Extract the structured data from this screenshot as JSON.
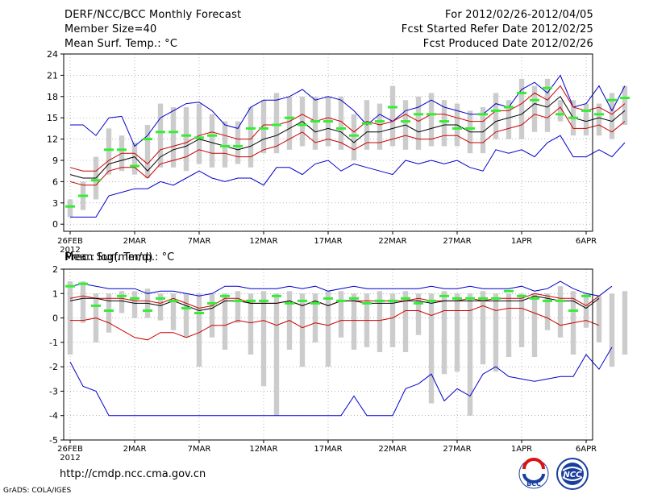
{
  "header": {
    "title": "DERF/NCC/BCC Monthly Forecast",
    "member_size": "Member Size=40",
    "var1": "Mean Surf. Temp.: °C",
    "period": "For 2012/02/26-2012/04/05",
    "refer_date": "Fcst Started Refer Date 2012/02/25",
    "produced_date": "Fcst Produced Date 2012/02/26"
  },
  "footer": {
    "url": "http://cmdp.ncc.cma.gov.cn",
    "credit": "GrADS: COLA/IGES",
    "logo1_text": "BCC",
    "logo2_text": "NCC"
  },
  "colors": {
    "max_min": "#0000cc",
    "band": "#cc0000",
    "mean": "#000000",
    "obs": "#33ee33",
    "bar": "#cccccc",
    "grid": "#888888"
  },
  "chart_data": [
    {
      "type": "line",
      "title": "Mean Surf. Temp.: °C",
      "xlabel": "",
      "ylabel": "°C",
      "ylim": [
        -1,
        24
      ],
      "yticks": [
        0,
        3,
        6,
        9,
        12,
        15,
        18,
        21,
        24
      ],
      "x_tick_labels": [
        "26FEB",
        "2MAR",
        "7MAR",
        "12MAR",
        "17MAR",
        "22MAR",
        "27MAR",
        "1APR",
        "6APR"
      ],
      "x_tick_day_index": [
        0,
        5,
        10,
        15,
        20,
        25,
        30,
        35,
        40
      ],
      "year_label": "2012",
      "grid": true,
      "series": [
        {
          "name": "max",
          "values": [
            14.0,
            14.0,
            12.5,
            15.0,
            15.2,
            11.0,
            12.5,
            15.0,
            16.0,
            17.0,
            17.2,
            16.0,
            14.0,
            13.5,
            16.5,
            17.5,
            17.5,
            18.0,
            19.0,
            17.5,
            18.0,
            17.5,
            16.0,
            14.0,
            15.5,
            14.5,
            16.0,
            16.5,
            17.5,
            16.5,
            16.0,
            15.5,
            15.5,
            17.0,
            16.5,
            19.0,
            20.0,
            18.5,
            21.0,
            16.5,
            17.0,
            19.5,
            16.0,
            19.5
          ]
        },
        {
          "name": "upper",
          "values": [
            8.0,
            7.5,
            7.5,
            9.0,
            10.0,
            10.0,
            8.5,
            10.5,
            11.0,
            11.5,
            12.5,
            13.0,
            12.5,
            12.0,
            12.0,
            14.0,
            14.0,
            14.5,
            15.5,
            14.5,
            15.0,
            14.5,
            13.0,
            14.5,
            14.0,
            14.5,
            15.5,
            14.5,
            15.5,
            15.5,
            15.0,
            14.5,
            14.5,
            16.0,
            16.0,
            17.0,
            18.5,
            17.5,
            19.5,
            16.5,
            16.0,
            16.5,
            15.5,
            17.0
          ]
        },
        {
          "name": "mean",
          "values": [
            7.0,
            6.5,
            6.5,
            8.5,
            9.0,
            9.5,
            7.5,
            9.5,
            10.5,
            11.0,
            12.0,
            11.5,
            11.0,
            10.5,
            11.0,
            12.0,
            12.5,
            13.5,
            14.5,
            13.0,
            13.5,
            13.0,
            11.5,
            13.0,
            13.0,
            13.5,
            14.0,
            13.0,
            13.5,
            14.0,
            14.0,
            13.0,
            13.0,
            14.5,
            15.0,
            15.5,
            17.0,
            16.5,
            18.0,
            15.0,
            14.5,
            15.0,
            14.5,
            16.0
          ]
        },
        {
          "name": "lower",
          "values": [
            6.0,
            5.5,
            5.5,
            7.5,
            8.0,
            8.0,
            6.5,
            8.5,
            9.0,
            9.5,
            10.5,
            10.0,
            10.0,
            9.5,
            9.5,
            10.5,
            11.0,
            12.0,
            13.0,
            11.5,
            12.0,
            11.5,
            10.5,
            11.5,
            11.5,
            12.0,
            12.5,
            12.0,
            12.0,
            12.5,
            12.5,
            11.5,
            11.5,
            13.0,
            13.5,
            14.0,
            15.5,
            15.0,
            16.5,
            13.5,
            13.5,
            14.0,
            13.0,
            14.5
          ]
        },
        {
          "name": "min",
          "values": [
            1.0,
            1.0,
            1.0,
            4.0,
            4.5,
            5.0,
            5.0,
            6.0,
            5.5,
            6.5,
            7.5,
            6.5,
            6.0,
            6.5,
            6.5,
            5.5,
            8.0,
            8.0,
            7.0,
            8.5,
            9.0,
            7.5,
            8.5,
            8.0,
            7.5,
            7.0,
            9.0,
            8.5,
            9.0,
            8.5,
            9.0,
            8.0,
            7.5,
            10.5,
            10.0,
            10.5,
            9.5,
            11.5,
            12.5,
            9.5,
            9.5,
            10.5,
            9.5,
            11.5
          ]
        }
      ],
      "obs": [
        2.5,
        4.0,
        6.2,
        10.5,
        10.5,
        8.2,
        12.0,
        13.0,
        13.0,
        12.5,
        12.2,
        12.5,
        11.0,
        11.0,
        13.5,
        13.5,
        14.0,
        15.0,
        14.0,
        14.5,
        14.5,
        13.5,
        12.5,
        14.2,
        14.5,
        16.5,
        14.5,
        15.5,
        15.5,
        14.5,
        13.5,
        13.5,
        15.5,
        16.0,
        16.5,
        18.5,
        17.5,
        19.2,
        15.5,
        15.0,
        16.0,
        15.5,
        17.5,
        17.8
      ],
      "bar_lo": [
        1.0,
        2.0,
        3.5,
        7.0,
        7.5,
        7.0,
        6.5,
        8.0,
        8.0,
        7.5,
        8.5,
        8.0,
        8.0,
        8.5,
        8.0,
        10.0,
        10.0,
        10.5,
        11.0,
        10.5,
        11.0,
        10.5,
        9.0,
        10.5,
        10.5,
        11.0,
        10.5,
        10.5,
        11.0,
        11.0,
        11.0,
        10.0,
        10.0,
        12.0,
        12.0,
        12.0,
        13.0,
        13.0,
        14.5,
        12.5,
        12.5,
        12.5,
        12.0,
        14.0
      ],
      "bar_hi": [
        3.5,
        6.0,
        9.5,
        13.5,
        12.5,
        11.5,
        14.0,
        17.0,
        16.5,
        16.5,
        17.0,
        15.5,
        14.5,
        14.5,
        16.5,
        17.5,
        18.5,
        18.0,
        18.0,
        18.0,
        18.0,
        18.0,
        15.5,
        17.5,
        17.0,
        19.5,
        17.5,
        18.0,
        18.5,
        17.5,
        17.0,
        16.0,
        16.5,
        18.5,
        17.5,
        20.5,
        19.5,
        20.5,
        17.5,
        17.5,
        17.0,
        17.0,
        18.5,
        19.5
      ]
    },
    {
      "type": "line",
      "title": "Prec.: log(mm/d)",
      "xlabel": "",
      "ylabel": "log(mm/d)",
      "ylim": [
        -5,
        2
      ],
      "yticks": [
        -5,
        -4,
        -3,
        -2,
        -1,
        0,
        1,
        2
      ],
      "x_tick_labels": [
        "26FEB",
        "2MAR",
        "7MAR",
        "12MAR",
        "17MAR",
        "22MAR",
        "27MAR",
        "1APR",
        "6APR"
      ],
      "x_tick_day_index": [
        0,
        5,
        10,
        15,
        20,
        25,
        30,
        35,
        40
      ],
      "year_label": "2012",
      "grid": true,
      "series": [
        {
          "name": "max",
          "values": [
            1.3,
            1.4,
            1.3,
            1.2,
            1.2,
            1.2,
            1.0,
            1.1,
            1.1,
            1.0,
            0.9,
            1.0,
            1.3,
            1.3,
            1.2,
            1.2,
            1.2,
            1.3,
            1.2,
            1.3,
            1.1,
            1.2,
            1.3,
            1.2,
            1.2,
            1.2,
            1.2,
            1.2,
            1.3,
            1.2,
            1.2,
            1.3,
            1.2,
            1.2,
            1.2,
            1.3,
            1.1,
            1.2,
            1.5,
            1.2,
            1.0,
            0.9,
            1.3
          ]
        },
        {
          "name": "upper",
          "values": [
            0.8,
            0.9,
            0.8,
            0.8,
            0.8,
            0.7,
            0.7,
            0.6,
            0.8,
            0.6,
            0.4,
            0.5,
            0.8,
            0.8,
            0.6,
            0.6,
            0.6,
            0.7,
            0.5,
            0.7,
            0.5,
            0.7,
            0.7,
            0.7,
            0.7,
            0.7,
            0.7,
            0.8,
            0.7,
            0.7,
            0.7,
            0.8,
            0.7,
            0.8,
            0.8,
            0.8,
            1.0,
            0.9,
            0.8,
            0.8,
            0.5,
            0.9
          ]
        },
        {
          "name": "mean",
          "values": [
            0.7,
            0.8,
            0.8,
            0.7,
            0.7,
            0.6,
            0.6,
            0.5,
            0.7,
            0.5,
            0.3,
            0.4,
            0.7,
            0.7,
            0.6,
            0.6,
            0.6,
            0.7,
            0.5,
            0.7,
            0.5,
            0.7,
            0.7,
            0.6,
            0.6,
            0.6,
            0.7,
            0.7,
            0.6,
            0.7,
            0.7,
            0.7,
            0.7,
            0.7,
            0.7,
            0.7,
            0.9,
            0.8,
            0.7,
            0.7,
            0.4,
            0.8
          ]
        },
        {
          "name": "lower",
          "values": [
            -0.1,
            -0.1,
            0.0,
            -0.2,
            -0.5,
            -0.8,
            -0.9,
            -0.6,
            -0.6,
            -0.8,
            -0.6,
            -0.3,
            -0.3,
            -0.1,
            -0.2,
            -0.1,
            -0.3,
            -0.1,
            -0.4,
            -0.2,
            -0.3,
            -0.1,
            -0.1,
            -0.1,
            -0.1,
            0.0,
            0.3,
            0.3,
            0.1,
            0.3,
            0.3,
            0.3,
            0.5,
            0.3,
            0.4,
            0.4,
            0.2,
            0.0,
            -0.3,
            -0.2,
            -0.1,
            -0.3
          ]
        },
        {
          "name": "min",
          "values": [
            -1.8,
            -2.8,
            -3.0,
            -4.0,
            -4.0,
            -4.0,
            -4.0,
            -4.0,
            -4.0,
            -4.0,
            -4.0,
            -4.0,
            -4.0,
            -4.0,
            -4.0,
            -4.0,
            -4.0,
            -4.0,
            -4.0,
            -4.0,
            -4.0,
            -4.0,
            -3.2,
            -4.0,
            -4.0,
            -4.0,
            -2.9,
            -2.7,
            -2.3,
            -3.4,
            -2.9,
            -3.2,
            -2.3,
            -2.0,
            -2.4,
            -2.5,
            -2.6,
            -2.5,
            -2.4,
            -2.4,
            -1.5,
            -2.1,
            -1.2
          ]
        }
      ],
      "obs": [
        1.3,
        1.4,
        0.5,
        0.3,
        0.9,
        0.8,
        0.3,
        0.8,
        0.7,
        0.4,
        0.2,
        0.6,
        0.9,
        0.7,
        0.7,
        0.7,
        0.9,
        0.6,
        0.7,
        0.6,
        0.8,
        0.7,
        0.8,
        0.6,
        0.7,
        0.7,
        0.8,
        0.6,
        0.7,
        0.9,
        0.8,
        0.8,
        0.8,
        0.8,
        1.1,
        0.9,
        0.8,
        0.7,
        0.7,
        0.3,
        0.9
      ],
      "bar_lo": [
        -1.5,
        -0.2,
        -1.0,
        -0.6,
        0.2,
        0.0,
        0.0,
        -0.1,
        -0.5,
        -0.8,
        -2.0,
        -0.8,
        -1.3,
        -0.2,
        -1.5,
        -2.8,
        -4.0,
        -1.3,
        -2.0,
        -1.0,
        -2.0,
        -0.8,
        -1.3,
        -1.2,
        -1.4,
        -1.2,
        -1.4,
        -0.7,
        -3.5,
        -2.3,
        -2.2,
        -4.0,
        -1.9,
        -2.2,
        -1.6,
        -1.2,
        -1.6,
        -0.5,
        -0.8,
        -1.5,
        -0.4,
        -1.0,
        -2.0,
        -1.5
      ],
      "bar_hi": [
        1.5,
        1.5,
        1.0,
        1.0,
        1.1,
        1.1,
        1.2,
        1.0,
        1.0,
        1.0,
        1.0,
        1.0,
        1.0,
        1.1,
        1.0,
        1.1,
        1.0,
        1.1,
        1.0,
        1.0,
        1.1,
        1.1,
        1.0,
        1.0,
        1.1,
        1.0,
        1.1,
        1.0,
        1.0,
        1.1,
        1.0,
        1.0,
        1.1,
        1.0,
        1.0,
        1.0,
        1.0,
        1.0,
        1.3,
        1.1,
        1.0,
        0.9,
        1.0,
        1.1
      ]
    }
  ]
}
